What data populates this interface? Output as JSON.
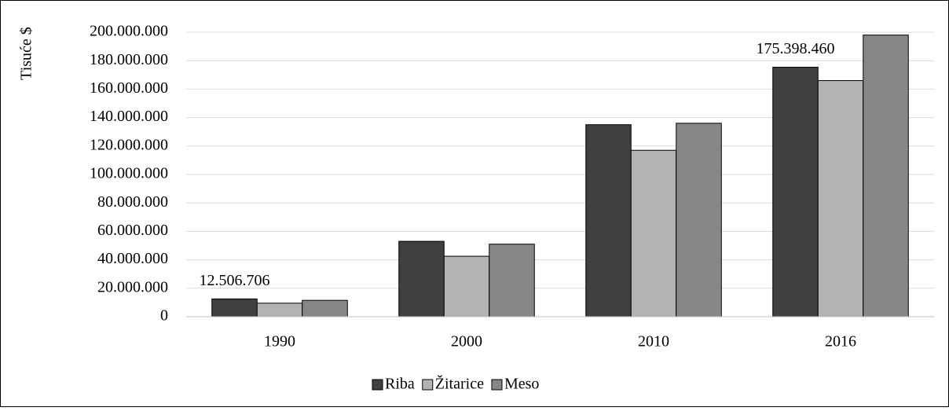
{
  "chart_data": {
    "type": "bar",
    "y_label": "Tisuće $",
    "categories": [
      "1990",
      "2000",
      "2010",
      "2016"
    ],
    "series": [
      {
        "name": "Riba",
        "color": "#404040",
        "values": [
          12506706,
          53000000,
          135000000,
          175398460
        ],
        "value_labels": [
          "12.506.706",
          null,
          null,
          "175.398.460"
        ]
      },
      {
        "name": "Žitarice",
        "color": "#b3b3b3",
        "values": [
          9500000,
          42500000,
          117000000,
          166000000
        ]
      },
      {
        "name": "Meso",
        "color": "#878787",
        "values": [
          11500000,
          51000000,
          136000000,
          198000000
        ]
      }
    ],
    "ylim": [
      0,
      200000000
    ],
    "yticks": [
      0,
      {
        "value": 20000000,
        "label": "20.000.000"
      },
      {
        "value": 40000000,
        "label": "40.000.000"
      },
      {
        "value": 60000000,
        "label": "60.000.000"
      },
      {
        "value": 80000000,
        "label": "80.000.000"
      },
      {
        "value": 100000000,
        "label": "100.000.000"
      },
      {
        "value": 120000000,
        "label": "120.000.000"
      },
      {
        "value": 140000000,
        "label": "140.000.000"
      },
      {
        "value": 160000000,
        "label": "160.000.000"
      },
      {
        "value": 180000000,
        "label": "180.000.000"
      },
      {
        "value": 200000000,
        "label": "200.000.000"
      }
    ],
    "grid": true,
    "legend": "bottom"
  }
}
